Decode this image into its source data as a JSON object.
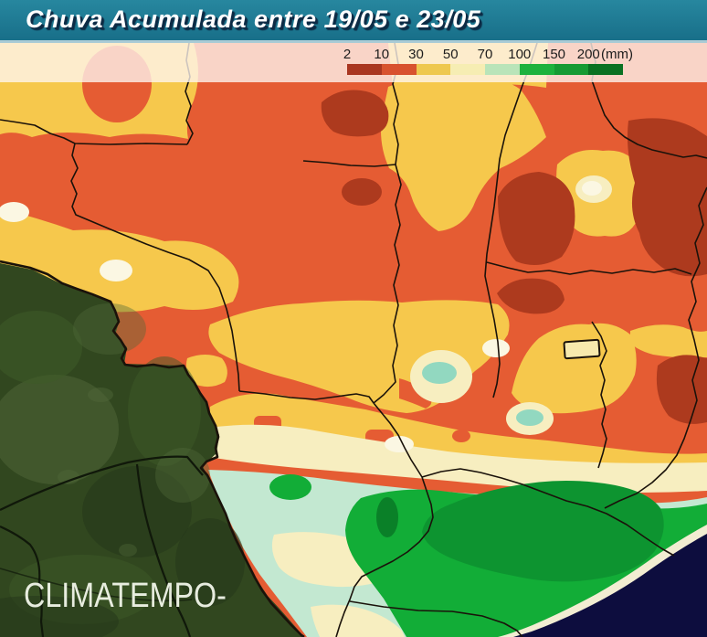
{
  "header": {
    "title": "Chuva Acumulada entre 19/05 e 23/05"
  },
  "legend": {
    "unit": "(mm)",
    "stops": [
      {
        "label": "2",
        "color": "#a93620"
      },
      {
        "label": "10",
        "color": "#d8522e"
      },
      {
        "label": "30",
        "color": "#eec84f"
      },
      {
        "label": "50",
        "color": "#f6edb3"
      },
      {
        "label": "70",
        "color": "#b9e4b9"
      },
      {
        "label": "100",
        "color": "#1eb23d"
      },
      {
        "label": "150",
        "color": "#169a33"
      },
      {
        "label": "200",
        "color": "#0a7122"
      }
    ]
  },
  "watermark": {
    "text": "CLIMATEMPO",
    "dash": "-"
  },
  "map": {
    "palette": {
      "orange": "#e55c33",
      "yellow": "#f6c84c",
      "darkred": "#ad3a1e",
      "cream": "#f7eec0",
      "cream_light": "#fbf7e3",
      "mint": "#c3e8d1",
      "cyan": "#92d8c0",
      "green": "#12ad37",
      "green_dark": "#0d9430",
      "green_darkest": "#0a8028",
      "ocean": "#0d0d3e",
      "coast": "#f2edd2",
      "terrain": "#31471f",
      "terrain_light": "#51683a",
      "terrain_mid": "#3e5a28",
      "terrain_dark": "#27381a",
      "border": "#1a120a",
      "df_fill": "#f7e9ad"
    }
  }
}
